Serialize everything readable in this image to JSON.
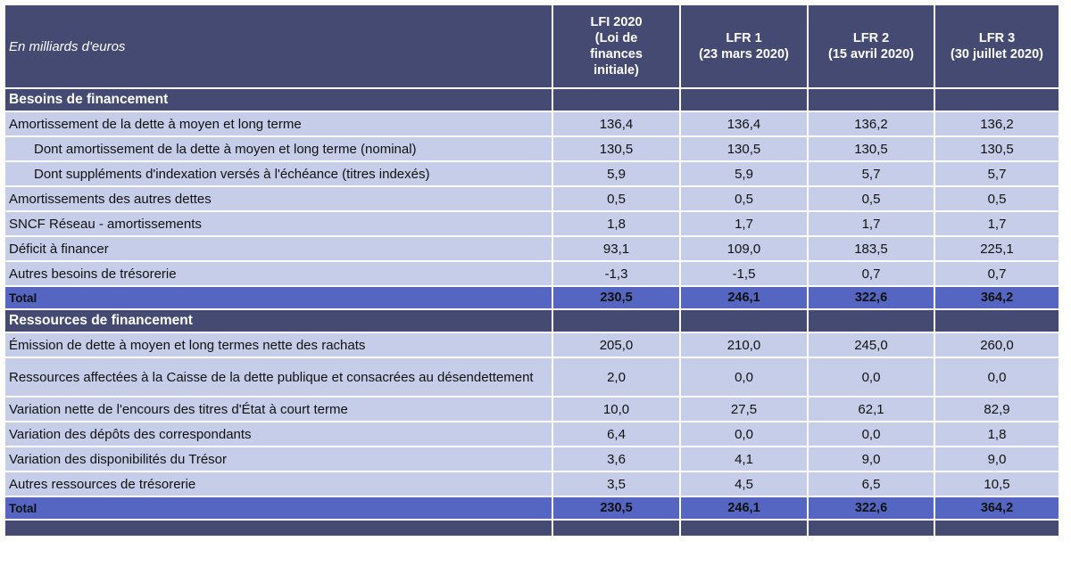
{
  "header": {
    "unit": "En milliards d'euros",
    "columns": [
      {
        "lines": [
          "LFI 2020",
          "(Loi de",
          "finances",
          "initiale)"
        ]
      },
      {
        "lines": [
          "LFR 1",
          "(23 mars 2020)"
        ]
      },
      {
        "lines": [
          "LFR 2",
          "(15 avril 2020)"
        ]
      },
      {
        "lines": [
          "LFR 3",
          "(30 juillet 2020)"
        ]
      }
    ]
  },
  "besoins": {
    "title": "Besoins de financement",
    "rows": [
      {
        "label": "Amortissement de la dette à moyen et long terme",
        "indent": false,
        "values": [
          "136,4",
          "136,4",
          "136,2",
          "136,2"
        ]
      },
      {
        "label": "Dont amortissement de la dette à moyen et long terme (nominal)",
        "indent": true,
        "values": [
          "130,5",
          "130,5",
          "130,5",
          "130,5"
        ]
      },
      {
        "label": "Dont suppléments d'indexation versés à l'échéance (titres indexés)",
        "indent": true,
        "values": [
          "5,9",
          "5,9",
          "5,7",
          "5,7"
        ]
      },
      {
        "label": "Amortissements des autres dettes",
        "indent": false,
        "values": [
          "0,5",
          "0,5",
          "0,5",
          "0,5"
        ]
      },
      {
        "label": "SNCF Réseau - amortissements",
        "indent": false,
        "values": [
          "1,8",
          "1,7",
          "1,7",
          "1,7"
        ]
      },
      {
        "label": "Déficit à financer",
        "indent": false,
        "values": [
          "93,1",
          "109,0",
          "183,5",
          "225,1"
        ]
      },
      {
        "label": "Autres besoins de trésorerie",
        "indent": false,
        "values": [
          "-1,3",
          "-1,5",
          "0,7",
          "0,7"
        ]
      }
    ],
    "total": {
      "label": "Total",
      "values": [
        "230,5",
        "246,1",
        "322,6",
        "364,2"
      ]
    }
  },
  "ressources": {
    "title": "Ressources de financement",
    "rows": [
      {
        "label": "Émission de dette à moyen et long termes nette des rachats",
        "values": [
          "205,0",
          "210,0",
          "245,0",
          "260,0"
        ]
      },
      {
        "label": "Ressources affectées à la Caisse de la dette publique et consacrées au désendettement",
        "values": [
          "2,0",
          "0,0",
          "0,0",
          "0,0"
        ]
      },
      {
        "label": "Variation nette de l'encours des titres d'État à court terme",
        "values": [
          "10,0",
          "27,5",
          "62,1",
          "82,9"
        ]
      },
      {
        "label": "Variation des dépôts des correspondants",
        "values": [
          "6,4",
          "0,0",
          "0,0",
          "1,8"
        ]
      },
      {
        "label": "Variation des disponibilités du Trésor",
        "values": [
          "3,6",
          "4,1",
          "9,0",
          "9,0"
        ]
      },
      {
        "label": "Autres ressources de trésorerie",
        "values": [
          "3,5",
          "4,5",
          "6,5",
          "10,5"
        ]
      }
    ],
    "total": {
      "label": "Total",
      "values": [
        "230,5",
        "246,1",
        "322,6",
        "364,2"
      ]
    }
  }
}
